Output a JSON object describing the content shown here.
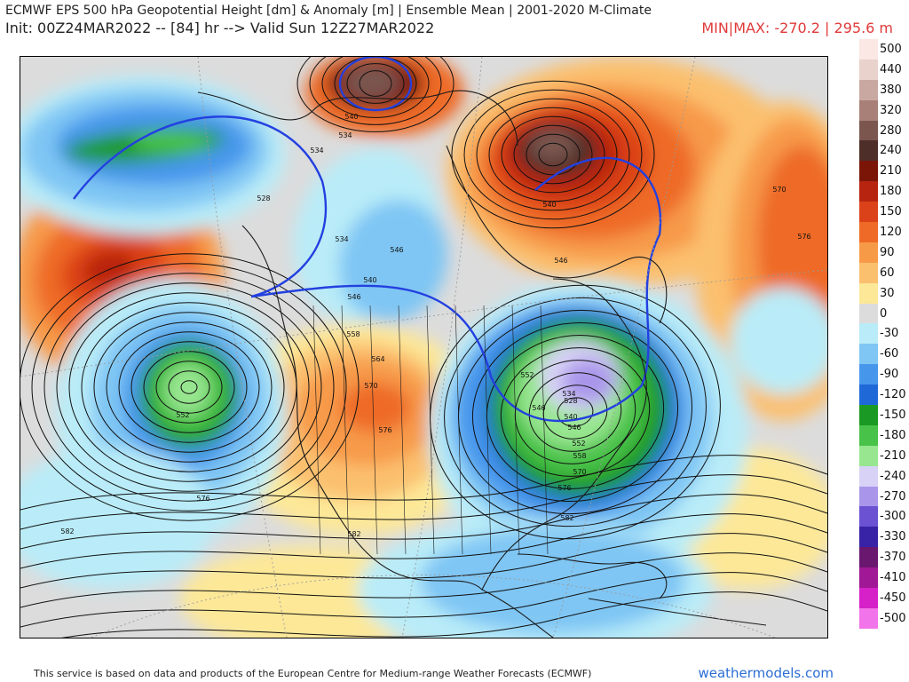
{
  "header": {
    "title": "ECMWF EPS 500 hPa Geopotential Height [dm] & Anomaly [m] | Ensemble Mean | 2001-2020 M-Climate",
    "init_line": "Init: 00Z24MAR2022 -- [84] hr --> Valid Sun 12Z27MAR2022",
    "minmax": "MIN|MAX: -270.2 | 295.6 m"
  },
  "legend": {
    "items": [
      {
        "label": "500",
        "color": "#fbe7e3"
      },
      {
        "label": "440",
        "color": "#e9d1cc"
      },
      {
        "label": "380",
        "color": "#c9a8a2"
      },
      {
        "label": "320",
        "color": "#a88078"
      },
      {
        "label": "280",
        "color": "#7a564f"
      },
      {
        "label": "240",
        "color": "#4e2e28"
      },
      {
        "label": "210",
        "color": "#7a1508"
      },
      {
        "label": "180",
        "color": "#b72410"
      },
      {
        "label": "150",
        "color": "#dc4219"
      },
      {
        "label": "120",
        "color": "#ee6a26"
      },
      {
        "label": "90",
        "color": "#f79a48"
      },
      {
        "label": "60",
        "color": "#fbc06e"
      },
      {
        "label": "30",
        "color": "#fde898"
      },
      {
        "label": "0",
        "color": "#dcdcdc"
      },
      {
        "label": "-30",
        "color": "#b9ecf8"
      },
      {
        "label": "-60",
        "color": "#7fc6f4"
      },
      {
        "label": "-90",
        "color": "#4697ec"
      },
      {
        "label": "-120",
        "color": "#1f68d8"
      },
      {
        "label": "-150",
        "color": "#1a9a24"
      },
      {
        "label": "-180",
        "color": "#48c248"
      },
      {
        "label": "-210",
        "color": "#98e690"
      },
      {
        "label": "-240",
        "color": "#d8d2f6"
      },
      {
        "label": "-270",
        "color": "#a996ea"
      },
      {
        "label": "-300",
        "color": "#6a52d2"
      },
      {
        "label": "-330",
        "color": "#3822a6"
      },
      {
        "label": "-370",
        "color": "#6a1770"
      },
      {
        "label": "-410",
        "color": "#a01896"
      },
      {
        "label": "-450",
        "color": "#d620c8"
      },
      {
        "label": "-500",
        "color": "#f274ea"
      }
    ]
  },
  "map": {
    "contour_labels": [
      "540",
      "534",
      "528",
      "534",
      "546",
      "540",
      "546",
      "570",
      "576",
      "540",
      "546",
      "558",
      "564",
      "570",
      "576",
      "582",
      "552",
      "576",
      "582",
      "528",
      "534",
      "540",
      "546",
      "552",
      "558",
      "570",
      "576",
      "582",
      "546",
      "552",
      "534"
    ]
  },
  "footer": {
    "credit": "This service is based on data and products of the European Centre for Medium-range Weather Forecasts (ECMWF)",
    "site": "weathermodels.com"
  }
}
